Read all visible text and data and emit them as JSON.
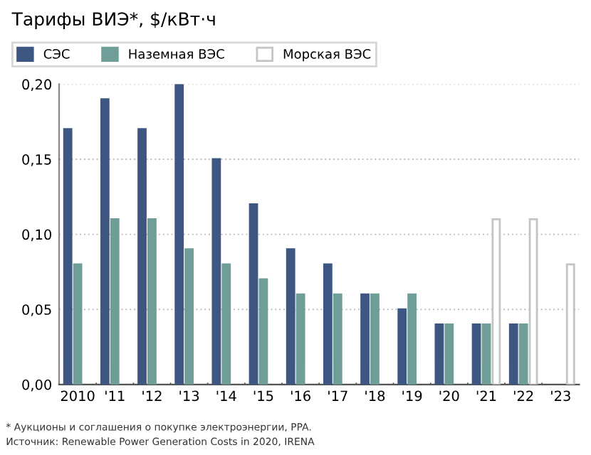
{
  "chart_data": {
    "type": "bar",
    "title": "Тарифы ВИЭ*, $/кВт·ч",
    "categories": [
      "2010",
      "'11",
      "'12",
      "'13",
      "'14",
      "'15",
      "'16",
      "'17",
      "'18",
      "'19",
      "'20",
      "'21",
      "'22",
      "'23"
    ],
    "series": [
      {
        "name": "СЭС",
        "color": "#3d5782",
        "values": [
          0.17,
          0.19,
          0.17,
          0.2,
          0.15,
          0.12,
          0.09,
          0.08,
          0.06,
          0.05,
          0.04,
          0.04,
          0.04,
          null
        ]
      },
      {
        "name": "Наземная ВЭС",
        "color": "#6f9e98",
        "values": [
          0.08,
          0.11,
          0.11,
          0.09,
          0.08,
          0.07,
          0.06,
          0.06,
          0.06,
          0.06,
          0.04,
          0.04,
          0.04,
          null
        ]
      },
      {
        "name": "Морская ВЭС",
        "color": "#ffffff",
        "values": [
          null,
          null,
          null,
          null,
          null,
          null,
          null,
          null,
          null,
          null,
          null,
          0.11,
          0.11,
          0.08
        ]
      }
    ],
    "ylim": [
      0,
      0.2
    ],
    "yticks": [
      {
        "value": 0,
        "label": "0,00"
      },
      {
        "value": 0.05,
        "label": "0,05"
      },
      {
        "value": 0.1,
        "label": "0,10"
      },
      {
        "value": 0.15,
        "label": "0,15"
      },
      {
        "value": 0.2,
        "label": "0,20"
      }
    ],
    "grid": "y",
    "legend": "top left",
    "annotations": [
      "* Аукционы и соглашения о покупке электроэнергии, PPA.",
      "Источник: Renewable Power Generation Costs in 2020, IRENA"
    ]
  }
}
